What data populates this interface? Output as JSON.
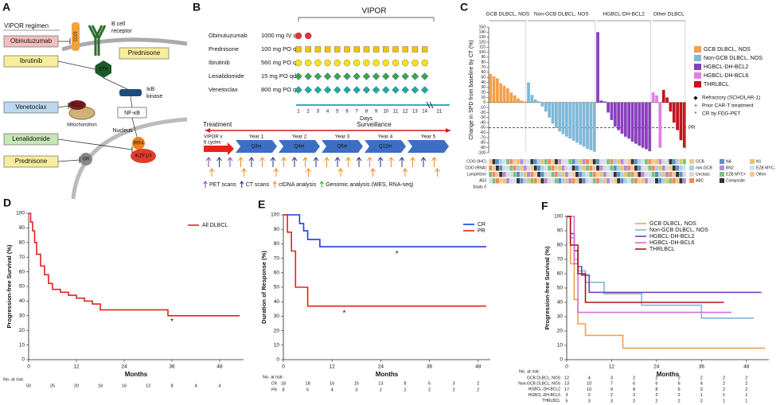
{
  "panel_a": {
    "label": "A",
    "regimen_title": "VIPOR regimen",
    "drugs": [
      {
        "name": "Obinutuzumab",
        "color": "#f2bfc0"
      },
      {
        "name": "Ibrutinib",
        "color": "#f6ee9c"
      },
      {
        "name": "Venetoclax",
        "color": "#bcd8ee"
      },
      {
        "name": "Lenalidomide",
        "color": "#c7e6b6"
      },
      {
        "name": "Prednisone",
        "color": "#f6ee9c"
      }
    ],
    "targets": {
      "cd20": "CD20",
      "bcr": [
        "B cell",
        "receptor"
      ],
      "prednisone": "Prednisone",
      "btk": "BTK",
      "ikk": [
        "IκB",
        "kinase"
      ],
      "nfkb": "NF-κB",
      "bcl2": "BCL2",
      "mito": "Mitochondrion",
      "nucleus": "Nucleus",
      "irf4": "IRF4",
      "ikzf": "IKZF1/3",
      "gr": "GR"
    }
  },
  "panel_b": {
    "label": "B",
    "title": "VIPOR",
    "regimen": [
      {
        "drug": "Obinutuzumab",
        "dose": "1000 mg  IV qd",
        "days": [
          1,
          2
        ],
        "shape": "circle",
        "color": "#e8312f"
      },
      {
        "drug": "Prednisone",
        "dose": "100 mg PO qd",
        "days": [
          1,
          2,
          3,
          4,
          5,
          6,
          7,
          8,
          9,
          10,
          11,
          12,
          13,
          14
        ],
        "shape": "square",
        "color": "#f5c400"
      },
      {
        "drug": "Ibrutinib",
        "dose": "560 mg PO qd",
        "days": [
          1,
          2,
          3,
          4,
          5,
          6,
          7,
          8,
          9,
          10,
          11,
          12,
          13,
          14
        ],
        "shape": "circle",
        "color": "#f7e21b"
      },
      {
        "drug": "Lenalidomide",
        "dose": "15 mg PO qd",
        "days": [
          1,
          2,
          3,
          4,
          5,
          6,
          7,
          8,
          9,
          10,
          11,
          12,
          13,
          14
        ],
        "shape": "diamond",
        "color": "#3aa35a"
      },
      {
        "drug": "Venetoclax",
        "dose": "800 mg PO qd",
        "days": [
          1,
          2,
          3,
          4,
          5,
          6,
          7,
          8,
          9,
          10,
          11,
          12,
          13,
          14
        ],
        "shape": "diamond",
        "color": "#1fa9a0"
      }
    ],
    "day_ticks": [
      1,
      2,
      3,
      4,
      5,
      6,
      7,
      8,
      9,
      10,
      11,
      12,
      13,
      14,
      21
    ],
    "days_label": "Days",
    "timeline": {
      "treatment": "Treatment",
      "surveillance": "Surveillance",
      "induction": [
        "VIPOR x",
        "6 cycles"
      ],
      "years": [
        "Year 1",
        "Year 2",
        "Year 3",
        "Year 4",
        "Year 5"
      ],
      "intervals": [
        "Q3m",
        "Q4m",
        "Q6m",
        "Q12m"
      ]
    },
    "legend": [
      {
        "label": "PET scans",
        "color": "#8b3fb5"
      },
      {
        "label": "CT scans",
        "color": "#1f2f7a"
      },
      {
        "label": "ctDNA analysis",
        "color": "#f08a24"
      },
      {
        "label": "Genomic analysis (WES, RNA-seq)",
        "color": "#37a837"
      }
    ]
  },
  "chart_data": [
    {
      "type": "bar",
      "panel": "C",
      "y_label": "Change in SPD from baseline by CT (%)",
      "ylim": [
        -100,
        150
      ],
      "yticks": [
        -100,
        -90,
        -80,
        -70,
        -60,
        -50,
        -40,
        -30,
        -20,
        -10,
        0,
        10,
        20,
        30,
        40,
        50,
        60,
        70,
        80,
        90,
        100,
        110,
        120,
        130,
        140,
        150
      ],
      "groups": [
        "GCB DLBCL, NOS",
        "Non-GCB DLBCL, NOS",
        "HGBCL-DH-BCL2",
        "Other DLBCL"
      ],
      "reference_line": {
        "value": -50,
        "label": "PR"
      },
      "series": [
        {
          "name": "GCB DLBCL, NOS",
          "color": "#f5a04a",
          "values": [
            57,
            52,
            48,
            38,
            33,
            28,
            20,
            14,
            8,
            4,
            2
          ]
        },
        {
          "name": "Non-GCB DLBCL, NOS",
          "color": "#7fb8d6",
          "values": [
            40,
            15,
            6,
            2,
            -8,
            -18,
            -30,
            -42,
            -50,
            -58,
            -63,
            -68,
            -72,
            -76,
            -80,
            -84,
            -88,
            -92,
            -95,
            -98
          ]
        },
        {
          "name": "HGBCL-DH-BCL2",
          "color": "#8a3fbf",
          "values": [
            140,
            4,
            2,
            -20,
            -35,
            -48,
            -55,
            -62,
            -68,
            -72,
            -78,
            -82,
            -86,
            -90,
            -93,
            -97
          ]
        },
        {
          "name": "HGBCL-DH-BCL6",
          "color": "#e27fe0",
          "values": [
            20,
            14,
            -90
          ]
        },
        {
          "name": "THRLBCL",
          "color": "#c3141e",
          "values": [
            25,
            10,
            -18,
            -40,
            -55,
            -75,
            -90
          ]
        }
      ],
      "marker_legend": [
        {
          "symbol": "◆",
          "label": "Refractory (SCHOLAR-1)"
        },
        {
          "symbol": "+",
          "label": "Prior CAR-T treatment"
        },
        {
          "symbol": "*",
          "label": "CR by FDG-PET"
        }
      ],
      "annotation_rows": [
        "COO (IHC)",
        "COO (RNA)",
        "LymphGen",
        "A53",
        "Study #"
      ],
      "annotation_legend": [
        "GCB",
        "non-GCB",
        "Unclass",
        "ABC",
        "NA",
        "BN2",
        "EZB MYC+",
        "Composite",
        "N1",
        "EZB MYC-",
        "Other"
      ]
    },
    {
      "type": "line",
      "panel": "D",
      "x_label": "Months",
      "y_label": "Progression-free Survival (%)",
      "xlim": [
        0,
        54
      ],
      "xticks": [
        0,
        12,
        24,
        36,
        48
      ],
      "ylim": [
        0,
        100
      ],
      "yticks": [
        0,
        10,
        20,
        30,
        40,
        50,
        60,
        70,
        80,
        90,
        100
      ],
      "series": [
        {
          "name": "All DLBCL",
          "color": "#e8211b",
          "x": [
            0,
            0.5,
            0.5,
            1,
            1,
            1.5,
            1.5,
            2,
            2,
            3,
            3,
            4,
            4,
            5,
            5,
            6,
            6,
            8,
            8,
            10,
            10,
            12,
            12,
            14,
            14,
            16,
            16,
            18,
            18,
            35,
            35,
            53
          ],
          "values": [
            100,
            100,
            94,
            94,
            88,
            88,
            80,
            80,
            72,
            72,
            64,
            64,
            58,
            58,
            52,
            52,
            48,
            48,
            46,
            46,
            44,
            44,
            42,
            42,
            40,
            40,
            38,
            38,
            34,
            34,
            30,
            30
          ]
        }
      ],
      "annotations": [
        {
          "text": "*",
          "x": 36,
          "y": 26
        }
      ],
      "risk_title": "No. at risk:",
      "at_risk": [
        {
          "values": [
            50,
            25,
            20,
            18,
            16,
            13,
            8,
            4,
            4
          ]
        }
      ]
    },
    {
      "type": "line",
      "panel": "E",
      "x_label": "Months",
      "y_label": "Duration of Response (%)",
      "xlim": [
        0,
        51
      ],
      "xticks": [
        0,
        12,
        24,
        36,
        48
      ],
      "ylim": [
        0,
        100
      ],
      "yticks": [
        0,
        10,
        20,
        30,
        40,
        50,
        60,
        70,
        80,
        90,
        100
      ],
      "series": [
        {
          "name": "CR",
          "color": "#1d3fd6",
          "x": [
            0,
            4,
            4,
            5,
            5,
            6,
            6,
            9,
            9,
            50
          ],
          "values": [
            100,
            100,
            94,
            94,
            89,
            89,
            83,
            83,
            78,
            78
          ]
        },
        {
          "name": "PR",
          "color": "#e8211b",
          "x": [
            0,
            1,
            1,
            2,
            2,
            3,
            3,
            6,
            6,
            50
          ],
          "values": [
            100,
            100,
            88,
            88,
            75,
            75,
            50,
            50,
            37,
            37
          ]
        }
      ],
      "annotations": [
        {
          "text": "*",
          "x": 28,
          "y": 73
        },
        {
          "text": "*",
          "x": 15,
          "y": 32
        }
      ],
      "risk_title": "No. at risk:",
      "at_risk": [
        {
          "name": "CR",
          "values": [
            18,
            18,
            16,
            15,
            13,
            8,
            5,
            3,
            2
          ]
        },
        {
          "name": "PR",
          "values": [
            8,
            5,
            4,
            3,
            2,
            2,
            2,
            2,
            2
          ]
        }
      ]
    },
    {
      "type": "line",
      "panel": "F",
      "x_label": "Months",
      "y_label": "Progression-free Survival (%)",
      "xlim": [
        0,
        54
      ],
      "xticks": [
        0,
        12,
        24,
        36,
        48
      ],
      "ylim": [
        0,
        100
      ],
      "yticks": [
        0,
        10,
        20,
        30,
        40,
        50,
        60,
        70,
        80,
        90,
        100
      ],
      "series": [
        {
          "name": "GCB DLBCL, NOS",
          "color": "#f5a04a",
          "x": [
            0,
            1,
            1,
            2,
            2,
            3,
            3,
            5,
            5,
            15,
            15,
            53
          ],
          "values": [
            100,
            100,
            67,
            67,
            42,
            42,
            25,
            25,
            17,
            17,
            8,
            8
          ]
        },
        {
          "name": "Non-GCB DLBCL, NOS",
          "color": "#7fb8d6",
          "x": [
            0,
            1,
            1,
            2,
            2,
            3,
            3,
            5,
            5,
            10,
            10,
            20,
            20,
            36,
            36,
            50
          ],
          "values": [
            100,
            100,
            85,
            85,
            70,
            70,
            62,
            62,
            54,
            54,
            46,
            46,
            38,
            38,
            29,
            29
          ]
        },
        {
          "name": "HGBCL-DH-BCL2",
          "color": "#7a3db8",
          "x": [
            0,
            1,
            1,
            2,
            2,
            3,
            3,
            4,
            4,
            6,
            6,
            52
          ],
          "values": [
            100,
            100,
            88,
            88,
            76,
            76,
            65,
            65,
            59,
            59,
            47,
            47
          ]
        },
        {
          "name": "HGBCL-DH-BCL6",
          "color": "#d86fd6",
          "x": [
            0,
            2,
            2,
            3,
            3,
            44
          ],
          "values": [
            100,
            100,
            67,
            67,
            33,
            33
          ]
        },
        {
          "name": "THRLBCL",
          "color": "#b3121b",
          "x": [
            0,
            1,
            1,
            3,
            3,
            5,
            5,
            42
          ],
          "values": [
            100,
            100,
            80,
            80,
            60,
            60,
            40,
            40
          ]
        }
      ],
      "risk_title": "No. at risk:",
      "at_risk": [
        {
          "name": "GCB DLBCL, NOS",
          "values": [
            12,
            4,
            3,
            2,
            2,
            2,
            2,
            2,
            2
          ]
        },
        {
          "name": "Non-GCB DLBCL, NOS",
          "values": [
            13,
            10,
            7,
            6,
            6,
            6,
            4,
            2,
            2
          ]
        },
        {
          "name": "HGBCL-DH-BCL2",
          "values": [
            17,
            10,
            9,
            8,
            8,
            5,
            3,
            2,
            2
          ]
        },
        {
          "name": "HGBCL-DH-BCL6",
          "values": [
            3,
            2,
            2,
            2,
            2,
            2,
            1,
            1,
            1
          ]
        },
        {
          "name": "THRLBCL",
          "values": [
            5,
            3,
            3,
            2,
            2,
            2,
            2,
            1,
            1
          ]
        }
      ]
    }
  ]
}
